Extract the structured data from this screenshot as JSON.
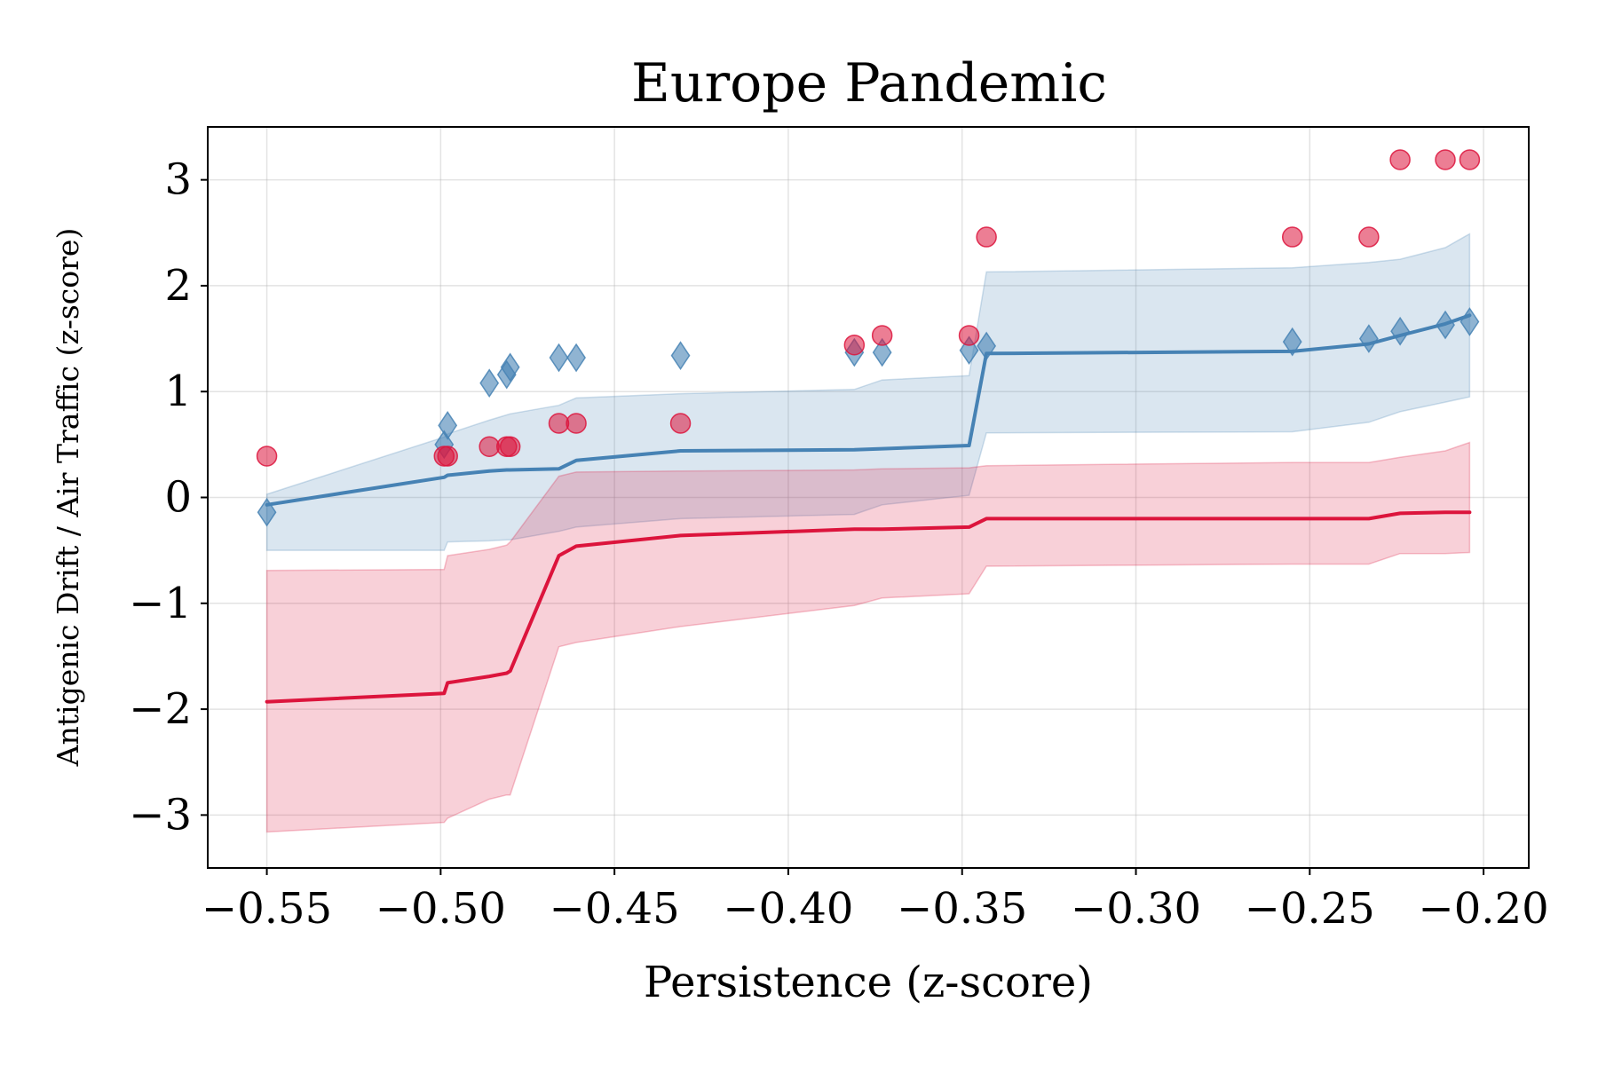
{
  "chart_data": {
    "type": "scatter",
    "title": "Europe Pandemic",
    "xlabel": "Persistence (z-score)",
    "ylabel": "Antigenic Drift / Air Traffic (z-score)",
    "xlim": [
      -0.567,
      -0.187
    ],
    "ylim": [
      -3.5,
      3.5
    ],
    "xticks": [
      -0.55,
      -0.5,
      -0.45,
      -0.4,
      -0.35,
      -0.3,
      -0.25,
      -0.2
    ],
    "xtick_labels": [
      "−0.55",
      "−0.50",
      "−0.45",
      "−0.40",
      "−0.35",
      "−0.30",
      "−0.25",
      "−0.20"
    ],
    "yticks": [
      -3,
      -2,
      -1,
      0,
      1,
      2,
      3
    ],
    "ytick_labels": [
      "−3",
      "−2",
      "−1",
      "0",
      "1",
      "2",
      "3"
    ],
    "grid": true,
    "colors": {
      "blue": "#4682b4",
      "red": "#dc143c"
    },
    "series": [
      {
        "color": "#4682b4",
        "marker": "diamond",
        "points": [
          [
            -0.55,
            -0.14
          ],
          [
            -0.499,
            0.5
          ],
          [
            -0.498,
            0.68
          ],
          [
            -0.486,
            1.08
          ],
          [
            -0.481,
            1.16
          ],
          [
            -0.48,
            1.23
          ],
          [
            -0.466,
            1.32
          ],
          [
            -0.461,
            1.32
          ],
          [
            -0.431,
            1.34
          ],
          [
            -0.381,
            1.37
          ],
          [
            -0.373,
            1.37
          ],
          [
            -0.348,
            1.39
          ],
          [
            -0.343,
            1.43
          ],
          [
            -0.255,
            1.47
          ],
          [
            -0.233,
            1.5
          ],
          [
            -0.224,
            1.57
          ],
          [
            -0.211,
            1.63
          ],
          [
            -0.204,
            1.66
          ]
        ],
        "fit_x": [
          -0.55,
          -0.499,
          -0.498,
          -0.486,
          -0.481,
          -0.48,
          -0.466,
          -0.461,
          -0.431,
          -0.381,
          -0.373,
          -0.348,
          -0.343,
          -0.255,
          -0.233,
          -0.224,
          -0.211,
          -0.204
        ],
        "fit_y": [
          -0.07,
          0.19,
          0.21,
          0.25,
          0.26,
          0.26,
          0.27,
          0.35,
          0.44,
          0.45,
          0.46,
          0.49,
          1.36,
          1.38,
          1.45,
          1.53,
          1.64,
          1.72
        ],
        "band_low": [
          -0.5,
          -0.5,
          -0.42,
          -0.41,
          -0.4,
          -0.4,
          -0.32,
          -0.28,
          -0.2,
          -0.16,
          -0.07,
          0.02,
          0.61,
          0.62,
          0.71,
          0.81,
          0.9,
          0.95
        ],
        "band_high": [
          0.03,
          0.57,
          0.6,
          0.73,
          0.78,
          0.79,
          0.87,
          0.94,
          0.98,
          1.02,
          1.11,
          1.15,
          2.13,
          2.17,
          2.22,
          2.25,
          2.36,
          2.49
        ]
      },
      {
        "color": "#dc143c",
        "marker": "circle",
        "points": [
          [
            -0.55,
            0.39
          ],
          [
            -0.499,
            0.39
          ],
          [
            -0.498,
            0.39
          ],
          [
            -0.486,
            0.48
          ],
          [
            -0.481,
            0.48
          ],
          [
            -0.48,
            0.48
          ],
          [
            -0.466,
            0.7
          ],
          [
            -0.461,
            0.7
          ],
          [
            -0.431,
            0.7
          ],
          [
            -0.381,
            1.44
          ],
          [
            -0.373,
            1.53
          ],
          [
            -0.348,
            1.53
          ],
          [
            -0.343,
            2.46
          ],
          [
            -0.255,
            2.46
          ],
          [
            -0.233,
            2.46
          ],
          [
            -0.224,
            3.19
          ],
          [
            -0.211,
            3.19
          ],
          [
            -0.204,
            3.19
          ]
        ],
        "fit_x": [
          -0.55,
          -0.499,
          -0.498,
          -0.486,
          -0.481,
          -0.48,
          -0.466,
          -0.461,
          -0.431,
          -0.381,
          -0.373,
          -0.348,
          -0.343,
          -0.255,
          -0.233,
          -0.224,
          -0.211,
          -0.204
        ],
        "fit_y": [
          -1.93,
          -1.85,
          -1.75,
          -1.69,
          -1.66,
          -1.64,
          -0.55,
          -0.46,
          -0.36,
          -0.3,
          -0.3,
          -0.28,
          -0.2,
          -0.2,
          -0.2,
          -0.15,
          -0.14,
          -0.14
        ],
        "band_low": [
          -3.16,
          -3.07,
          -3.03,
          -2.85,
          -2.81,
          -2.81,
          -1.41,
          -1.37,
          -1.22,
          -1.02,
          -0.95,
          -0.91,
          -0.65,
          -0.63,
          -0.63,
          -0.53,
          -0.53,
          -0.52
        ],
        "band_high": [
          -0.69,
          -0.68,
          -0.55,
          -0.49,
          -0.45,
          -0.42,
          0.2,
          0.24,
          0.25,
          0.26,
          0.27,
          0.28,
          0.3,
          0.33,
          0.33,
          0.38,
          0.44,
          0.52
        ]
      }
    ]
  }
}
